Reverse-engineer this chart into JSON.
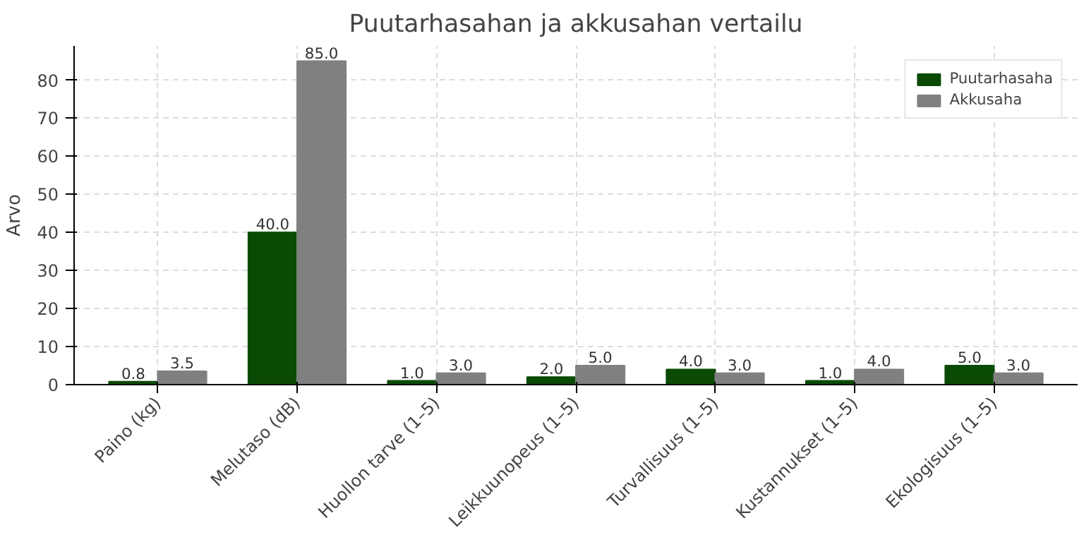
{
  "chart_data": {
    "type": "bar",
    "title": "Puutarhasahan ja akkusahan vertailu",
    "ylabel": "Arvo",
    "categories": [
      "Paino (kg)",
      "Melutaso (dB)",
      "Huollon tarve (1–5)",
      "Leikkuunopeus (1–5)",
      "Turvallisuus (1–5)",
      "Kustannukset (1–5)",
      "Ekologisuus (1–5)"
    ],
    "series": [
      {
        "name": "Puutarhasaha",
        "color": "#0b4a05",
        "values": [
          0.8,
          40,
          1,
          2,
          4,
          1,
          5
        ],
        "value_labels": [
          "0.8",
          "40.0",
          "1.0",
          "2.0",
          "4.0",
          "1.0",
          "5.0"
        ]
      },
      {
        "name": "Akkusaha",
        "color": "#808080",
        "values": [
          3.5,
          85,
          3,
          5,
          3,
          4,
          3
        ],
        "value_labels": [
          "3.5",
          "85.0",
          "3.0",
          "5.0",
          "3.0",
          "4.0",
          "3.0"
        ]
      }
    ],
    "ylim": [
      0,
      89
    ],
    "yticks": [
      0,
      10,
      20,
      30,
      40,
      50,
      60,
      70,
      80
    ],
    "grid": true,
    "legend": "top right"
  }
}
